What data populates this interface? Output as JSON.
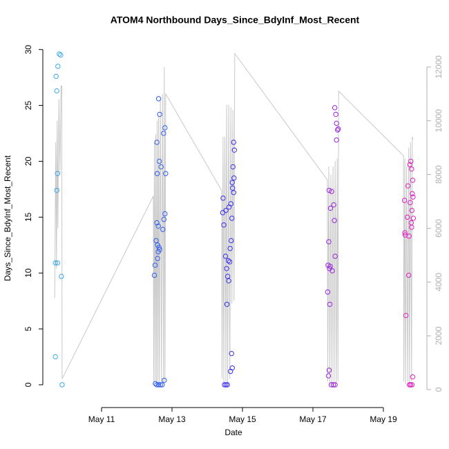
{
  "chart_data": {
    "type": "scatter",
    "title": "ATOM4 Northbound Days_Since_BdyInf_Most_Recent",
    "x_label": "Date",
    "y_label": "Days_Since_BdyInf_Most_Recent",
    "xlim": [
      9.333,
      20.235
    ],
    "xticks": [
      {
        "value": 11,
        "label": "May 11"
      },
      {
        "value": 13,
        "label": "May 13"
      },
      {
        "value": 15,
        "label": "May 15"
      },
      {
        "value": 17,
        "label": "May 17"
      },
      {
        "value": 19,
        "label": "May 19"
      }
    ],
    "ylim": [
      -2.04,
      30.6
    ],
    "yticks": [
      0,
      5,
      10,
      15,
      20,
      25,
      30
    ],
    "y2lim": [
      -668,
      12898
    ],
    "y2ticks": [
      0,
      2000,
      4000,
      6000,
      8000,
      10000,
      12000
    ],
    "series": [
      {
        "color": "#36a9f0",
        "x": [
          9.69,
          9.71,
          9.73,
          9.76,
          9.8,
          9.84,
          9.75,
          9.73,
          9.69,
          9.75,
          9.86,
          9.88
        ],
        "values": [
          2.5,
          27.6,
          26.3,
          28.5,
          29.6,
          29.5,
          18.9,
          17.4,
          10.9,
          10.9,
          9.7,
          0
        ]
      },
      {
        "color": "#2f5ef0",
        "x": [
          12.62,
          12.65,
          12.8,
          12.76,
          12.57,
          12.64,
          12.69,
          12.58,
          12.82,
          12.8,
          12.77,
          12.57,
          12.61,
          12.74,
          12.55,
          12.59,
          12.63,
          12.65,
          12.61,
          12.59,
          12.52,
          12.5,
          12.78,
          12.53,
          12.57,
          12.62,
          12.67,
          12.72
        ],
        "values": [
          25.6,
          24.2,
          23.0,
          22.5,
          21.7,
          20.0,
          19.5,
          18.9,
          18.9,
          15.3,
          14.8,
          14.5,
          14.2,
          13.9,
          12.9,
          12.5,
          12.3,
          12.1,
          11.9,
          11.3,
          10.7,
          9.8,
          0.4,
          0.1,
          0,
          0,
          0,
          0
        ]
      },
      {
        "color": "#3a2ff0",
        "x": [
          14.75,
          14.77,
          14.73,
          14.76,
          14.71,
          14.72,
          14.75,
          14.45,
          14.67,
          14.62,
          14.53,
          14.44,
          14.7,
          14.47,
          14.68,
          14.65,
          14.52,
          14.6,
          14.64,
          14.55,
          14.58,
          14.61,
          14.56,
          14.69,
          14.71,
          14.66,
          14.49,
          14.53,
          14.57
        ],
        "values": [
          21.7,
          21.0,
          19.5,
          18.5,
          18.1,
          17.6,
          17.2,
          16.7,
          16.2,
          15.9,
          15.6,
          15.4,
          14.9,
          14.3,
          12.9,
          12.2,
          11.5,
          11.1,
          11.0,
          10.4,
          9.7,
          9.3,
          7.2,
          2.8,
          1.5,
          1.2,
          0,
          0,
          0
        ]
      },
      {
        "color": "#9b22e0",
        "x": [
          17.62,
          17.65,
          17.67,
          17.72,
          17.7,
          17.67,
          17.46,
          17.53,
          17.59,
          17.5,
          17.61,
          17.45,
          17.63,
          17.43,
          17.49,
          17.47,
          17.55,
          17.42,
          17.48,
          17.46,
          17.44,
          17.52,
          17.58,
          17.63
        ],
        "values": [
          24.8,
          24.2,
          23.4,
          22.9,
          22.8,
          21.9,
          17.4,
          17.3,
          16.1,
          15.8,
          14.7,
          12.8,
          11.5,
          10.7,
          10.6,
          10.4,
          10.2,
          8.3,
          7.2,
          1.3,
          0.8,
          0,
          0,
          0
        ]
      },
      {
        "color": "#e020c0",
        "x": [
          19.78,
          19.75,
          19.8,
          19.83,
          19.7,
          19.82,
          19.84,
          19.6,
          19.76,
          19.81,
          19.68,
          19.85,
          19.79,
          19.8,
          19.61,
          19.62,
          19.73,
          19.72,
          19.64,
          19.83,
          19.74,
          19.77,
          19.81
        ],
        "values": [
          20.0,
          19.7,
          19.3,
          18.3,
          17.8,
          17.1,
          16.8,
          16.5,
          16.3,
          15.6,
          15.0,
          14.9,
          14.5,
          14.1,
          13.6,
          13.4,
          13.3,
          9.8,
          6.2,
          0.7,
          0,
          0,
          0
        ]
      },
      {
        "type": "line",
        "axis": "y2",
        "color": "#c8c8c8",
        "x": [
          9.67,
          9.7,
          9.72,
          9.74,
          9.76,
          9.79,
          9.82,
          9.85,
          9.87,
          9.88,
          12.47,
          12.48,
          12.5,
          12.52,
          12.54,
          12.56,
          12.58,
          12.6,
          12.62,
          12.64,
          12.67,
          12.7,
          12.73,
          12.76,
          12.78,
          12.8,
          12.82,
          14.41,
          14.42,
          14.45,
          14.47,
          14.5,
          14.53,
          14.55,
          14.58,
          14.61,
          14.64,
          14.67,
          14.7,
          14.73,
          14.76,
          14.78,
          17.41,
          17.42,
          17.45,
          17.48,
          17.51,
          17.54,
          17.57,
          17.6,
          17.63,
          17.66,
          17.69,
          17.71,
          17.73,
          19.57,
          19.58,
          19.61,
          19.63,
          19.66,
          19.69,
          19.72,
          19.74,
          19.77,
          19.8,
          19.82,
          19.84
        ],
        "values": [
          3400,
          9200,
          4500,
          10000,
          6000,
          10800,
          8000,
          11300,
          11300,
          400,
          7200,
          200,
          9200,
          300,
          9500,
          200,
          10000,
          300,
          10200,
          200,
          10800,
          300,
          11000,
          200,
          12000,
          300,
          11000,
          7400,
          400,
          9400,
          200,
          9400,
          300,
          10600,
          200,
          10600,
          400,
          10500,
          3200,
          10400,
          3300,
          12500,
          7800,
          300,
          8300,
          200,
          8000,
          200,
          8300,
          300,
          8500,
          200,
          8600,
          300,
          11100,
          8700,
          300,
          8600,
          200,
          8300,
          300,
          9000,
          200,
          9200,
          300,
          9400,
          9300
        ]
      }
    ]
  }
}
